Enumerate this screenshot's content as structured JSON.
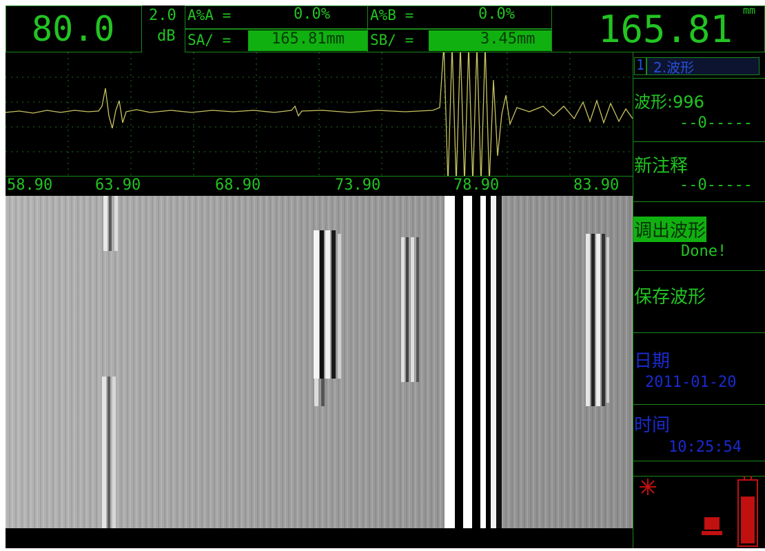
{
  "header": {
    "gain": "80.0",
    "step": "2.0",
    "step_unit": "dB",
    "a_percent_a": {
      "label": "A%A =",
      "value": "0.0%"
    },
    "a_percent_b": {
      "label": "A%B =",
      "value": "0.0%"
    },
    "sa": {
      "label": "SA/ =",
      "value": "165.81mm"
    },
    "sb": {
      "label": "SB/ =",
      "value": "3.45mm"
    },
    "reading": "165.81",
    "reading_unit": "mm"
  },
  "axis": {
    "labels": [
      "58.90",
      "63.90",
      "68.90",
      "73.90",
      "78.90",
      "83.90"
    ]
  },
  "menu": {
    "page": "1",
    "tab": "2.波形",
    "items": [
      {
        "label": "波形:996",
        "value": "--0-----"
      },
      {
        "label": "新注释",
        "value": "--0-----"
      },
      {
        "label": "调出波形",
        "value": "Done!"
      },
      {
        "label": "保存波形"
      },
      {
        "label": "日期",
        "value": "2011-01-20"
      },
      {
        "label": "时间",
        "value": "10:25:54"
      }
    ]
  }
}
